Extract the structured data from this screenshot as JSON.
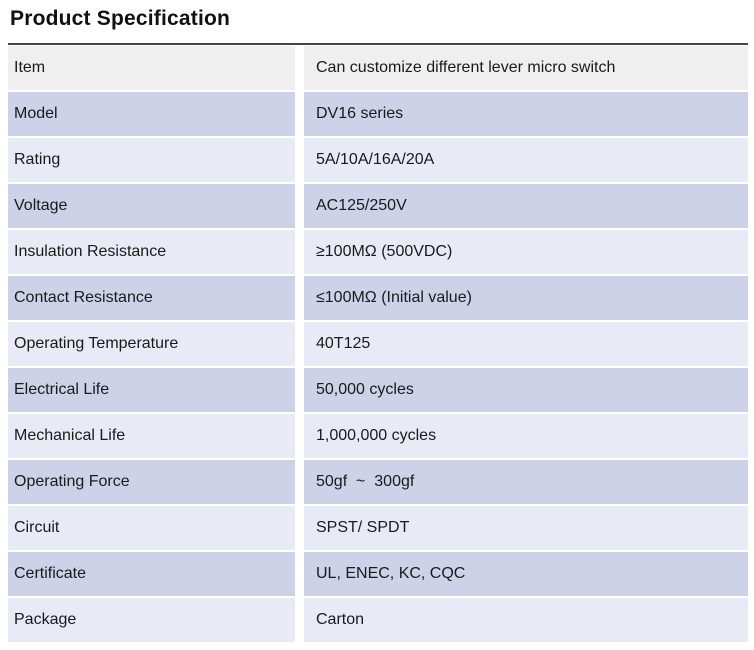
{
  "page": {
    "title": "Product Specification"
  },
  "colors": {
    "row_gray": "#efefef",
    "row_dark": "#cdd2e8",
    "row_light": "#e8eaf5",
    "rule": "#444444",
    "text": "#1a1a1a"
  },
  "table": {
    "rows": [
      {
        "label": "Item",
        "value": "Can customize different lever micro switch"
      },
      {
        "label": "Model",
        "value": "DV16 series"
      },
      {
        "label": "Rating",
        "value": "5A/10A/16A/20A"
      },
      {
        "label": "Voltage",
        "value": "AC125/250V"
      },
      {
        "label": "Insulation Resistance",
        "value": "≥100MΩ (500VDC)"
      },
      {
        "label": "Contact Resistance",
        "value": "≤100MΩ (Initial value)"
      },
      {
        "label": "Operating Temperature",
        "value": "40T125"
      },
      {
        "label": "Electrical Life",
        "value": "50,000 cycles"
      },
      {
        "label": "Mechanical Life",
        "value": "1,000,000 cycles"
      },
      {
        "label": "Operating Force",
        "value": "50gf  ~  300gf"
      },
      {
        "label": "Circuit",
        "value": "SPST/ SPDT"
      },
      {
        "label": "Certificate",
        "value": "UL, ENEC, KC, CQC"
      },
      {
        "label": "Package",
        "value": "Carton"
      }
    ]
  }
}
